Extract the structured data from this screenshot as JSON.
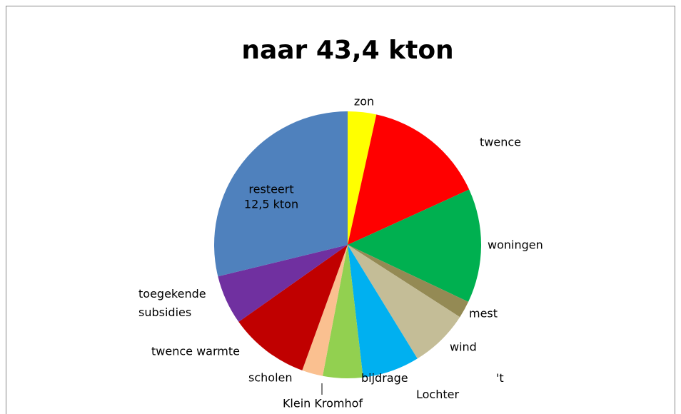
{
  "chart_data": {
    "type": "pie",
    "title": "naar 43,4 kton",
    "categories": [
      "zon",
      "twence",
      "woningen",
      "mest",
      "wind",
      "bijdrage 't Lochter",
      "Klein Kromhof",
      "scholen",
      "twence warmte",
      "toegekende subsidies",
      "resteert"
    ],
    "values": [
      1.5,
      6.4,
      6.0,
      0.9,
      3.1,
      3.0,
      2.1,
      1.1,
      4.2,
      2.6,
      12.5
    ],
    "value_labels": [
      null,
      null,
      null,
      null,
      null,
      null,
      null,
      null,
      null,
      null,
      "12,5 kton"
    ],
    "colors": [
      "#ffff00",
      "#ff0000",
      "#00b050",
      "#948a54",
      "#c4bd97",
      "#00b0f0",
      "#92d050",
      "#fac090",
      "#c00000",
      "#7030a0",
      "#4f81bd"
    ]
  }
}
